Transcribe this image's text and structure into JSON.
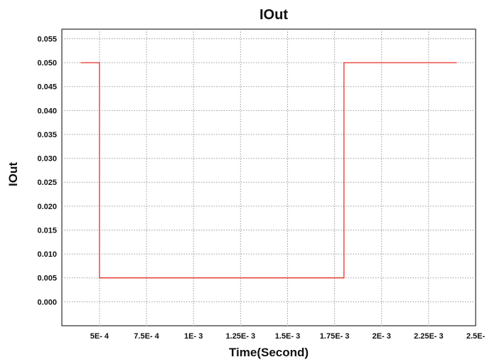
{
  "chart_data": {
    "type": "line",
    "title": "IOut",
    "xlabel": "Time(Second)",
    "ylabel": "IOut",
    "xlim": [
      0.0003,
      0.0025
    ],
    "ylim": [
      -0.005,
      0.057
    ],
    "grid": true,
    "x_ticks": [
      0.0005,
      0.00075,
      0.001,
      0.00125,
      0.0015,
      0.00175,
      0.002,
      0.00225,
      0.0025
    ],
    "x_tick_labels": [
      "5E- 4",
      "7.5E- 4",
      "1E- 3",
      "1.25E- 3",
      "1.5E- 3",
      "1.75E- 3",
      "2E- 3",
      "2.25E- 3",
      "2.5E-"
    ],
    "y_ticks": [
      0.0,
      0.005,
      0.01,
      0.015,
      0.02,
      0.025,
      0.03,
      0.035,
      0.04,
      0.045,
      0.05,
      0.055
    ],
    "y_tick_labels": [
      "0.000",
      "0.005",
      "0.010",
      "0.015",
      "0.020",
      "0.025",
      "0.030",
      "0.035",
      "0.040",
      "0.045",
      "0.050",
      "0.055"
    ],
    "series": [
      {
        "color": "#e8302a",
        "x": [
          0.0004,
          0.0005,
          0.0005,
          0.0018,
          0.0018,
          0.0024
        ],
        "y": [
          0.05,
          0.05,
          0.005,
          0.005,
          0.05,
          0.05
        ]
      }
    ]
  }
}
